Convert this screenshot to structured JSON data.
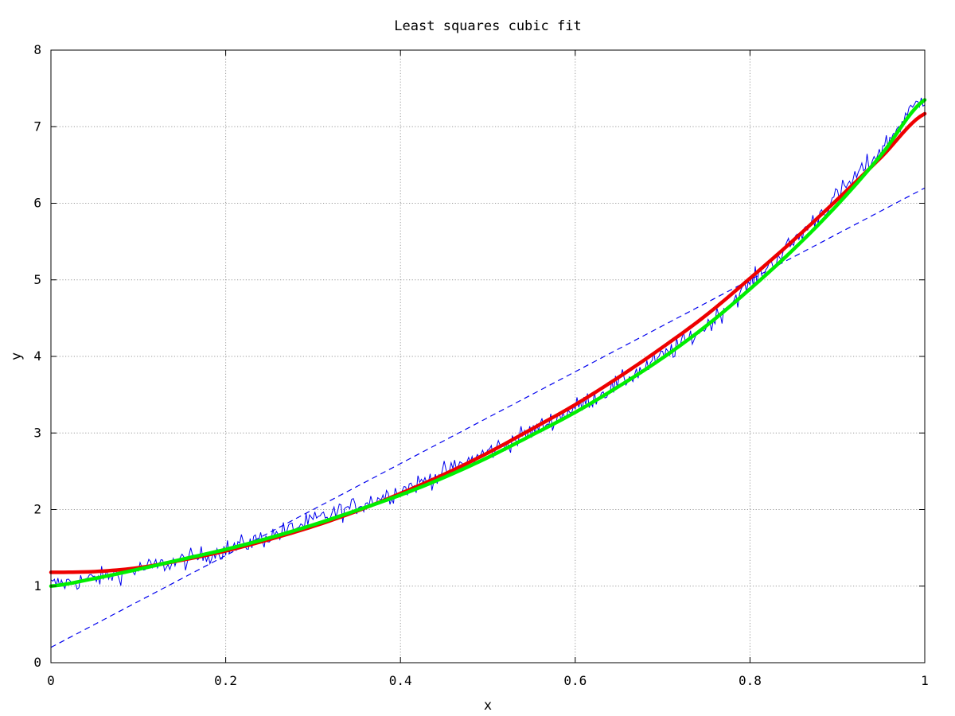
{
  "chart_data": {
    "type": "line",
    "title": "Least squares cubic fit",
    "xlabel": "x",
    "ylabel": "y",
    "xlim": [
      0,
      1
    ],
    "ylim": [
      0,
      8
    ],
    "x_ticks": [
      "0",
      "0.2",
      "0.4",
      "0.6",
      "0.8",
      "1"
    ],
    "y_ticks": [
      "0",
      "1",
      "2",
      "3",
      "4",
      "5",
      "6",
      "7",
      "8"
    ],
    "grid": true,
    "legend": "none",
    "x": [
      0,
      0.05,
      0.1,
      0.15,
      0.2,
      0.25,
      0.3,
      0.35,
      0.4,
      0.45,
      0.5,
      0.55,
      0.6,
      0.65,
      0.7,
      0.75,
      0.8,
      0.85,
      0.9,
      0.95,
      1.0
    ],
    "series": [
      {
        "style": "noisy",
        "color": "#0000ee",
        "values": [
          1.02,
          1.1,
          1.22,
          1.33,
          1.48,
          1.65,
          1.85,
          2.05,
          2.25,
          2.48,
          2.75,
          3.02,
          3.33,
          3.65,
          4.0,
          4.4,
          4.95,
          5.5,
          6.1,
          6.7,
          7.38
        ]
      },
      {
        "style": "dashed-linear-fit",
        "color": "#0000ee",
        "values": [
          0.2,
          0.5,
          0.8,
          1.1,
          1.4,
          1.7,
          2.0,
          2.3,
          2.6,
          2.9,
          3.2,
          3.5,
          3.8,
          4.1,
          4.4,
          4.7,
          5.0,
          5.3,
          5.6,
          5.9,
          6.2
        ]
      },
      {
        "style": "thick",
        "color": "#ee0000",
        "values": [
          1.18,
          1.19,
          1.24,
          1.34,
          1.46,
          1.61,
          1.78,
          1.98,
          2.21,
          2.46,
          2.74,
          3.05,
          3.37,
          3.73,
          4.12,
          4.54,
          5.02,
          5.52,
          6.05,
          6.6,
          7.17
        ]
      },
      {
        "style": "thick",
        "color": "#00ee00",
        "values": [
          1.0,
          1.1,
          1.22,
          1.35,
          1.48,
          1.63,
          1.8,
          1.99,
          2.19,
          2.42,
          2.68,
          2.97,
          3.27,
          3.61,
          3.98,
          4.4,
          4.88,
          5.4,
          5.98,
          6.63,
          7.35
        ]
      }
    ]
  }
}
